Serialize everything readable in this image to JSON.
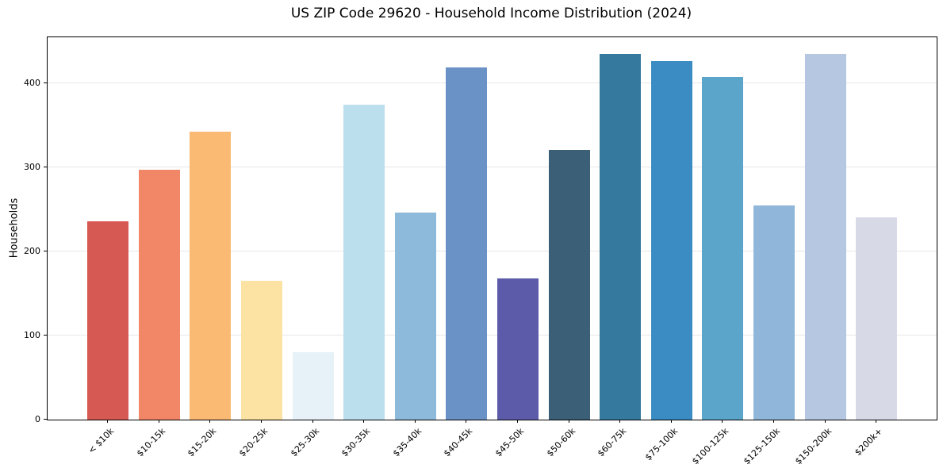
{
  "chart_data": {
    "type": "bar",
    "title": "US ZIP Code 29620 - Household Income Distribution (2024)",
    "xlabel": "",
    "ylabel": "Households",
    "categories": [
      "< $10k",
      "$10-15k",
      "$15-20k",
      "$20-25k",
      "$25-30k",
      "$30-35k",
      "$35-40k",
      "$40-45k",
      "$45-50k",
      "$50-60k",
      "$60-75k",
      "$75-100k",
      "$100-125k",
      "$125-150k",
      "$150-200k",
      "$200k+"
    ],
    "values": [
      236,
      297,
      343,
      165,
      80,
      375,
      246,
      419,
      168,
      321,
      435,
      427,
      408,
      255,
      435,
      241
    ],
    "bar_colors": [
      "#d65953",
      "#f28767",
      "#fbba74",
      "#fce3a4",
      "#e6f2f7",
      "#bcdfee",
      "#8db9da",
      "#6b92c6",
      "#5c5baa",
      "#3a5f77",
      "#36799e",
      "#3b8cc2",
      "#5ba4ca",
      "#90b7da",
      "#b6c7e1",
      "#d7d9e7"
    ],
    "yticks": [
      0,
      100,
      200,
      300,
      400
    ],
    "ylim": [
      0,
      455
    ],
    "grid": "horizontal",
    "legend": "none",
    "background_color": "#ffffff",
    "spine_color": "#000000",
    "gridline_color": "#e7e7e7"
  }
}
